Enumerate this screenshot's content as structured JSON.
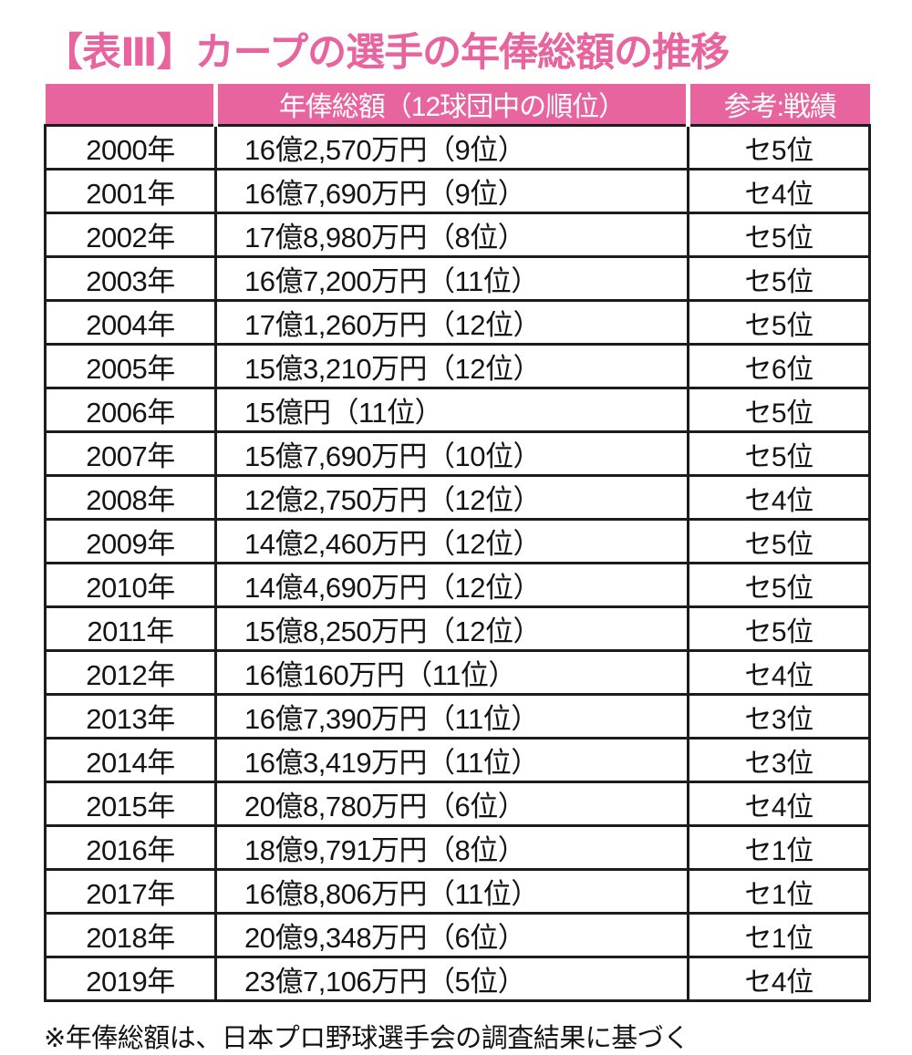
{
  "title": "【表Ⅲ】カープの選手の年俸総額の推移",
  "colors": {
    "accent_pink": "#e8649e",
    "border_black": "#1c1c1c",
    "header_text": "#ffffff"
  },
  "table": {
    "headers": {
      "year": "",
      "salary": "年俸総額（12球団中の順位）",
      "result": "参考:戦績"
    },
    "rows": [
      {
        "year": "2000年",
        "salary": "16億2,570万円（9位）",
        "result": "セ5位"
      },
      {
        "year": "2001年",
        "salary": "16億7,690万円（9位）",
        "result": "セ4位"
      },
      {
        "year": "2002年",
        "salary": "17億8,980万円（8位）",
        "result": "セ5位"
      },
      {
        "year": "2003年",
        "salary": "16億7,200万円（11位）",
        "result": "セ5位"
      },
      {
        "year": "2004年",
        "salary": "17億1,260万円（12位）",
        "result": "セ5位"
      },
      {
        "year": "2005年",
        "salary": "15億3,210万円（12位）",
        "result": "セ6位"
      },
      {
        "year": "2006年",
        "salary": "15億円（11位）",
        "result": "セ5位"
      },
      {
        "year": "2007年",
        "salary": "15億7,690万円（10位）",
        "result": "セ5位"
      },
      {
        "year": "2008年",
        "salary": "12億2,750万円（12位）",
        "result": "セ4位"
      },
      {
        "year": "2009年",
        "salary": "14億2,460万円（12位）",
        "result": "セ5位"
      },
      {
        "year": "2010年",
        "salary": "14億4,690万円（12位）",
        "result": "セ5位"
      },
      {
        "year": "2011年",
        "salary": "15億8,250万円（12位）",
        "result": "セ5位"
      },
      {
        "year": "2012年",
        "salary": "16億160万円（11位）",
        "result": "セ4位"
      },
      {
        "year": "2013年",
        "salary": "16億7,390万円（11位）",
        "result": "セ3位"
      },
      {
        "year": "2014年",
        "salary": "16億3,419万円（11位）",
        "result": "セ3位"
      },
      {
        "year": "2015年",
        "salary": "20億8,780万円（6位）",
        "result": "セ4位"
      },
      {
        "year": "2016年",
        "salary": "18億9,791万円（8位）",
        "result": "セ1位"
      },
      {
        "year": "2017年",
        "salary": "16億8,806万円（11位）",
        "result": "セ1位"
      },
      {
        "year": "2018年",
        "salary": "20億9,348万円（6位）",
        "result": "セ1位"
      },
      {
        "year": "2019年",
        "salary": "23億7,106万円（5位）",
        "result": "セ4位"
      }
    ]
  },
  "footnote": "※年俸総額は、日本プロ野球選手会の調査結果に基づく"
}
